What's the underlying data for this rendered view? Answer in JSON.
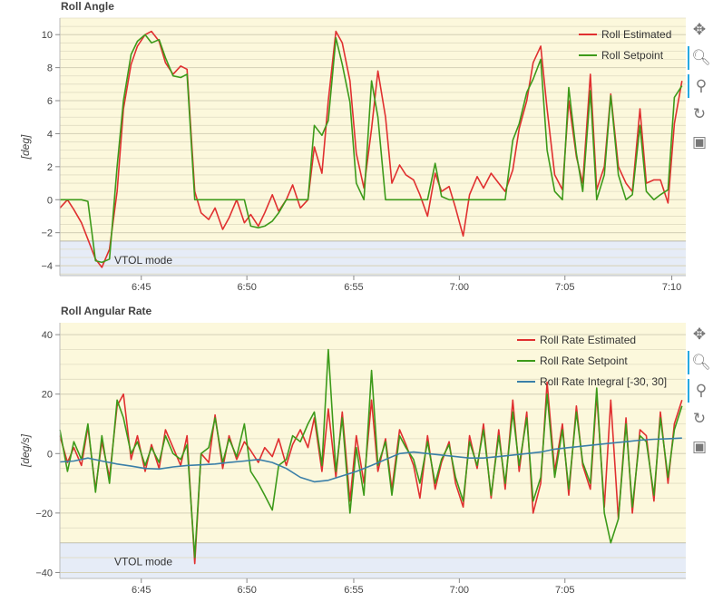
{
  "charts": [
    {
      "title": "Roll Angle",
      "ylabel": "[deg]",
      "mode_label": "VTOL mode",
      "tools": [
        "pan-icon",
        "zoom-icon",
        "wheel-zoom-icon",
        "reset-icon",
        "save-icon"
      ]
    },
    {
      "title": "Roll Angular Rate",
      "ylabel": "[deg/s]",
      "mode_label": "VTOL mode",
      "tools": [
        "pan-icon",
        "zoom-icon",
        "wheel-zoom-icon",
        "reset-icon",
        "save-icon"
      ]
    }
  ],
  "chart_data": [
    {
      "type": "line",
      "title": "Roll Angle",
      "xlabel": "",
      "ylabel": "[deg]",
      "xlim": [
        6.686,
        7.178
      ],
      "ylim": [
        -4.6,
        11.0
      ],
      "x_ticks": [
        6.75,
        6.833,
        6.917,
        7.0,
        7.083,
        7.167
      ],
      "x_tick_labels": [
        "6:45",
        "6:50",
        "6:55",
        "7:00",
        "7:05",
        "7:10"
      ],
      "y_ticks": [
        -4,
        -2,
        0,
        2,
        4,
        6,
        8,
        10
      ],
      "y_tick_labels": [
        "−4",
        "−2",
        "0",
        "2",
        "4",
        "6",
        "8",
        "10"
      ],
      "grid": true,
      "legend_position": "top-right",
      "vtol_region_below": -2.5,
      "colors": {
        "Roll Estimated": "#e03030",
        "Roll Setpoint": "#3d9a1a",
        "background": "#fcf8dc",
        "vtol": "#e6ecf7"
      },
      "series": [
        {
          "name": "Roll Estimated",
          "x": [
            6.686,
            6.692,
            6.697,
            6.703,
            6.708,
            6.714,
            6.719,
            6.725,
            6.731,
            6.736,
            6.742,
            6.747,
            6.753,
            6.758,
            6.764,
            6.769,
            6.775,
            6.781,
            6.786,
            6.792,
            6.797,
            6.803,
            6.808,
            6.814,
            6.819,
            6.825,
            6.831,
            6.836,
            6.842,
            6.847,
            6.853,
            6.858,
            6.864,
            6.869,
            6.875,
            6.881,
            6.886,
            6.892,
            6.897,
            6.903,
            6.908,
            6.914,
            6.919,
            6.925,
            6.931,
            6.936,
            6.942,
            6.947,
            6.953,
            6.958,
            6.964,
            6.969,
            6.975,
            6.981,
            6.986,
            6.992,
            6.997,
            7.003,
            7.008,
            7.014,
            7.019,
            7.025,
            7.031,
            7.036,
            7.042,
            7.047,
            7.053,
            7.058,
            7.064,
            7.069,
            7.075,
            7.081,
            7.086,
            7.092,
            7.097,
            7.103,
            7.108,
            7.114,
            7.119,
            7.125,
            7.131,
            7.136,
            7.142,
            7.147,
            7.153,
            7.158,
            7.164,
            7.169,
            7.175
          ],
          "values": [
            -0.5,
            0.0,
            -0.6,
            -1.4,
            -2.4,
            -3.6,
            -4.1,
            -3.0,
            0.5,
            5.5,
            8.2,
            9.3,
            10.0,
            10.2,
            9.6,
            8.3,
            7.6,
            8.1,
            7.9,
            0.5,
            -0.8,
            -1.2,
            -0.5,
            -1.8,
            -1.1,
            0.0,
            -1.4,
            -0.9,
            -1.6,
            -0.8,
            0.3,
            -0.7,
            0.0,
            0.9,
            -0.5,
            0.0,
            3.2,
            1.6,
            6.0,
            10.2,
            9.5,
            7.2,
            2.8,
            0.7,
            4.3,
            7.8,
            5.0,
            1.0,
            2.1,
            1.5,
            1.2,
            0.3,
            -1.0,
            1.6,
            0.5,
            0.8,
            -0.5,
            -2.2,
            0.3,
            1.4,
            0.7,
            1.6,
            1.0,
            0.5,
            1.8,
            4.3,
            6.0,
            8.3,
            9.3,
            5.5,
            1.5,
            0.6,
            6.0,
            2.6,
            1.0,
            7.6,
            0.6,
            2.0,
            6.4,
            2.0,
            1.0,
            0.5,
            5.5,
            1.0,
            1.2,
            1.2,
            -0.2,
            4.6,
            7.2
          ],
          "color": "#e03030"
        },
        {
          "name": "Roll Setpoint",
          "x": [
            6.686,
            6.692,
            6.697,
            6.703,
            6.708,
            6.714,
            6.719,
            6.725,
            6.731,
            6.736,
            6.742,
            6.747,
            6.753,
            6.758,
            6.764,
            6.769,
            6.775,
            6.781,
            6.786,
            6.792,
            6.797,
            6.803,
            6.808,
            6.814,
            6.819,
            6.825,
            6.831,
            6.836,
            6.842,
            6.847,
            6.853,
            6.858,
            6.864,
            6.869,
            6.875,
            6.881,
            6.886,
            6.892,
            6.897,
            6.903,
            6.908,
            6.914,
            6.919,
            6.925,
            6.931,
            6.936,
            6.942,
            6.947,
            6.953,
            6.958,
            6.964,
            6.969,
            6.975,
            6.981,
            6.986,
            6.992,
            6.997,
            7.003,
            7.008,
            7.014,
            7.019,
            7.025,
            7.031,
            7.036,
            7.042,
            7.047,
            7.053,
            7.058,
            7.064,
            7.069,
            7.075,
            7.081,
            7.086,
            7.092,
            7.097,
            7.103,
            7.108,
            7.114,
            7.119,
            7.125,
            7.131,
            7.136,
            7.142,
            7.147,
            7.153,
            7.158,
            7.164,
            7.169,
            7.175
          ],
          "values": [
            0.0,
            0.0,
            0.0,
            0.0,
            -0.1,
            -3.7,
            -3.8,
            -3.6,
            2.0,
            6.0,
            8.8,
            9.6,
            10.0,
            9.5,
            9.7,
            8.6,
            7.5,
            7.4,
            7.6,
            0.0,
            0.0,
            0.0,
            0.0,
            0.0,
            0.0,
            0.0,
            0.0,
            -1.6,
            -1.7,
            -1.6,
            -1.3,
            -0.8,
            0.0,
            0.0,
            0.0,
            0.0,
            4.5,
            3.9,
            4.8,
            9.8,
            8.2,
            5.9,
            1.0,
            0.0,
            7.2,
            5.0,
            0.0,
            0.0,
            0.0,
            0.0,
            0.0,
            0.0,
            0.0,
            2.2,
            0.2,
            0.0,
            0.0,
            0.0,
            0.0,
            0.0,
            0.0,
            0.0,
            0.0,
            0.0,
            3.6,
            4.6,
            6.5,
            7.3,
            8.5,
            3.0,
            0.5,
            0.0,
            6.8,
            2.8,
            0.5,
            6.6,
            0.0,
            1.5,
            6.3,
            1.5,
            0.0,
            0.3,
            4.5,
            0.5,
            0.0,
            0.3,
            0.6,
            6.2,
            6.9
          ],
          "color": "#3d9a1a"
        }
      ]
    },
    {
      "type": "line",
      "title": "Roll Angular Rate",
      "xlabel": "",
      "ylabel": "[deg/s]",
      "xlim": [
        6.686,
        7.178
      ],
      "ylim": [
        -42.0,
        44.0
      ],
      "x_ticks": [
        6.75,
        6.833,
        6.917,
        7.0,
        7.083
      ],
      "x_tick_labels": [
        "6:45",
        "6:50",
        "6:55",
        "7:00",
        "7:05"
      ],
      "y_ticks": [
        -40,
        -20,
        0,
        20,
        40
      ],
      "y_tick_labels": [
        "−40",
        "−20",
        "0",
        "20",
        "40"
      ],
      "grid": true,
      "legend_position": "top-right",
      "vtol_region_below": -30,
      "colors": {
        "Roll Rate Estimated": "#e03030",
        "Roll Rate Setpoint": "#3d9a1a",
        "Roll Rate Integral [-30, 30]": "#3a7fa8",
        "background": "#fcf8dc",
        "vtol": "#e6ecf7"
      },
      "series": [
        {
          "name": "Roll Rate Estimated",
          "x": [
            6.686,
            6.692,
            6.697,
            6.703,
            6.708,
            6.714,
            6.719,
            6.725,
            6.731,
            6.736,
            6.742,
            6.747,
            6.753,
            6.758,
            6.764,
            6.769,
            6.775,
            6.781,
            6.786,
            6.792,
            6.797,
            6.803,
            6.808,
            6.814,
            6.819,
            6.825,
            6.831,
            6.836,
            6.842,
            6.847,
            6.853,
            6.858,
            6.864,
            6.869,
            6.875,
            6.881,
            6.886,
            6.892,
            6.897,
            6.903,
            6.908,
            6.914,
            6.919,
            6.925,
            6.931,
            6.936,
            6.942,
            6.947,
            6.953,
            6.958,
            6.964,
            6.969,
            6.975,
            6.981,
            6.986,
            6.992,
            6.997,
            7.003,
            7.008,
            7.014,
            7.019,
            7.025,
            7.031,
            7.036,
            7.042,
            7.047,
            7.053,
            7.058,
            7.064,
            7.069,
            7.075,
            7.081,
            7.086,
            7.092,
            7.097,
            7.103,
            7.108,
            7.114,
            7.119,
            7.125,
            7.131,
            7.136,
            7.142,
            7.147,
            7.153,
            7.158,
            7.164,
            7.169,
            7.175
          ],
          "values": [
            6,
            -3,
            2,
            -4,
            9,
            -12,
            4,
            -8,
            16,
            20,
            -2,
            6,
            -6,
            3,
            -5,
            8,
            2,
            -4,
            6,
            -37,
            0,
            -3,
            13,
            -5,
            6,
            -2,
            4,
            1,
            -3,
            2,
            -1,
            5,
            -4,
            3,
            8,
            2,
            12,
            -6,
            15,
            -8,
            14,
            -16,
            6,
            -10,
            18,
            -6,
            5,
            -12,
            8,
            3,
            -4,
            -15,
            6,
            -12,
            -3,
            4,
            -10,
            -18,
            6,
            -5,
            10,
            -15,
            8,
            -12,
            18,
            -6,
            14,
            -20,
            -10,
            24,
            -6,
            10,
            -14,
            16,
            -4,
            -12,
            20,
            -18,
            18,
            -22,
            12,
            -20,
            8,
            6,
            -16,
            14,
            -10,
            10,
            18
          ],
          "color": "#e03030"
        },
        {
          "name": "Roll Rate Setpoint",
          "x": [
            6.686,
            6.692,
            6.697,
            6.703,
            6.708,
            6.714,
            6.719,
            6.725,
            6.731,
            6.736,
            6.742,
            6.747,
            6.753,
            6.758,
            6.764,
            6.769,
            6.775,
            6.781,
            6.786,
            6.792,
            6.797,
            6.803,
            6.808,
            6.814,
            6.819,
            6.825,
            6.831,
            6.836,
            6.842,
            6.847,
            6.853,
            6.858,
            6.864,
            6.869,
            6.875,
            6.881,
            6.886,
            6.892,
            6.897,
            6.903,
            6.908,
            6.914,
            6.919,
            6.925,
            6.931,
            6.936,
            6.942,
            6.947,
            6.953,
            6.958,
            6.964,
            6.969,
            6.975,
            6.981,
            6.986,
            6.992,
            6.997,
            7.003,
            7.008,
            7.014,
            7.019,
            7.025,
            7.031,
            7.036,
            7.042,
            7.047,
            7.053,
            7.058,
            7.064,
            7.069,
            7.075,
            7.081,
            7.086,
            7.092,
            7.097,
            7.103,
            7.108,
            7.114,
            7.119,
            7.125,
            7.131,
            7.136,
            7.142,
            7.147,
            7.153,
            7.158,
            7.164,
            7.169,
            7.175
          ],
          "values": [
            8,
            -6,
            4,
            -2,
            10,
            -13,
            6,
            -10,
            18,
            12,
            0,
            4,
            -4,
            2,
            -3,
            6,
            0,
            -2,
            3,
            -35,
            0,
            2,
            12,
            -3,
            5,
            -1,
            10,
            -6,
            -10,
            -14,
            -19,
            -4,
            -2,
            6,
            4,
            10,
            14,
            -4,
            35,
            -6,
            12,
            -20,
            2,
            -14,
            28,
            -4,
            4,
            -14,
            6,
            2,
            -2,
            -10,
            4,
            -10,
            -2,
            3,
            -8,
            -16,
            4,
            -4,
            8,
            -14,
            6,
            -10,
            14,
            -4,
            12,
            -16,
            -8,
            20,
            -8,
            8,
            -12,
            14,
            -3,
            -10,
            22,
            -20,
            -30,
            -22,
            10,
            -18,
            6,
            4,
            -14,
            12,
            -8,
            8,
            16
          ],
          "color": "#3d9a1a"
        },
        {
          "name": "Roll Rate Integral [-30, 30]",
          "x": [
            6.686,
            6.697,
            6.708,
            6.719,
            6.731,
            6.742,
            6.753,
            6.764,
            6.775,
            6.786,
            6.797,
            6.808,
            6.819,
            6.831,
            6.842,
            6.853,
            6.864,
            6.875,
            6.886,
            6.897,
            6.908,
            6.919,
            6.931,
            6.942,
            6.953,
            6.964,
            6.975,
            6.986,
            6.997,
            7.008,
            7.019,
            7.031,
            7.042,
            7.053,
            7.064,
            7.075,
            7.086,
            7.097,
            7.108,
            7.119,
            7.131,
            7.142,
            7.153,
            7.164,
            7.175
          ],
          "values": [
            -2.8,
            -2.5,
            -1.5,
            -2.5,
            -3.5,
            -4.2,
            -5,
            -5.2,
            -4.5,
            -4,
            -3.8,
            -3.5,
            -3,
            -2.5,
            -2,
            -3,
            -5,
            -8,
            -9.5,
            -9,
            -7.5,
            -6,
            -4,
            -2,
            0,
            0.5,
            0,
            -0.5,
            -1,
            -1.5,
            -1.5,
            -1,
            -0.5,
            0,
            0.5,
            1.5,
            2,
            2.5,
            3,
            3.5,
            4,
            4.5,
            4.8,
            5,
            5.2
          ],
          "color": "#3a7fa8"
        }
      ]
    }
  ]
}
